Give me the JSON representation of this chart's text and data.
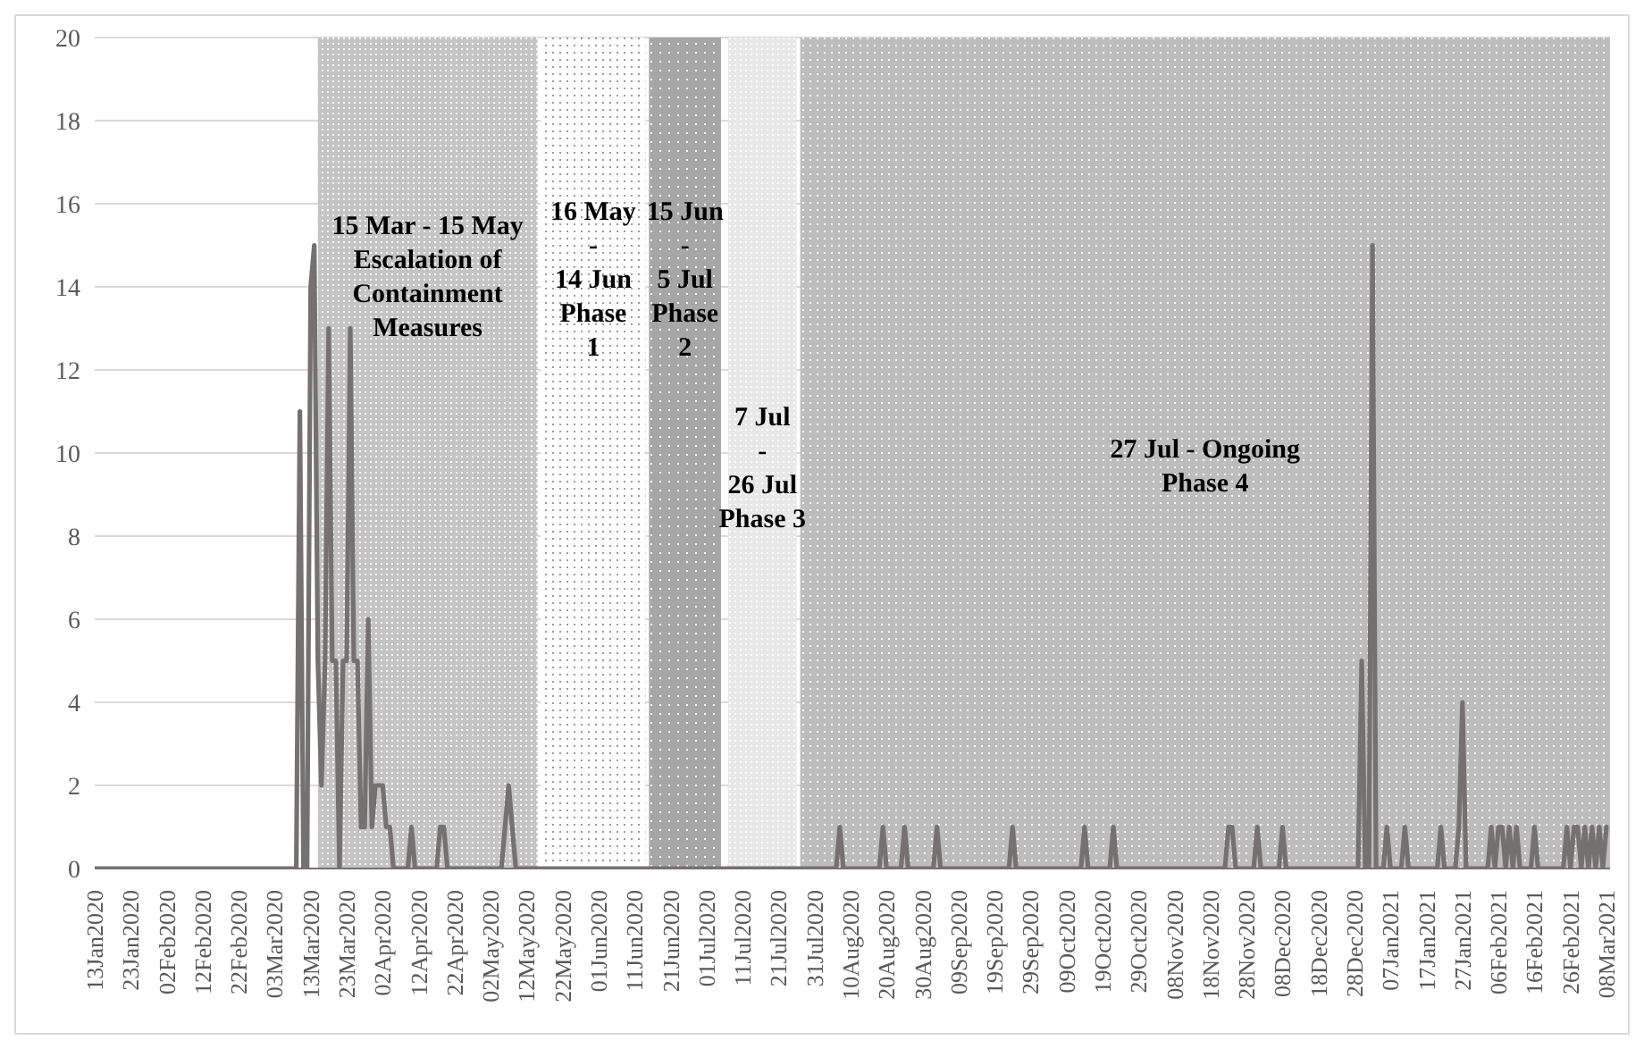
{
  "chart_data": {
    "type": "line",
    "xlim": [
      "2020-01-13",
      "2021-03-09"
    ],
    "ylim": [
      0,
      20
    ],
    "yticks": [
      0,
      2,
      4,
      6,
      8,
      10,
      12,
      14,
      16,
      18,
      20
    ],
    "grid": "y",
    "marker": "none",
    "line_style": "solid",
    "xticks": [
      {
        "value": "2020-01-13",
        "label": "13Jan2020"
      },
      {
        "value": "2020-01-23",
        "label": "23Jan2020"
      },
      {
        "value": "2020-02-02",
        "label": "02Feb2020"
      },
      {
        "value": "2020-02-12",
        "label": "12Feb2020"
      },
      {
        "value": "2020-02-22",
        "label": "22Feb2020"
      },
      {
        "value": "2020-03-03",
        "label": "03Mar2020"
      },
      {
        "value": "2020-03-13",
        "label": "13Mar2020"
      },
      {
        "value": "2020-03-23",
        "label": "23Mar2020"
      },
      {
        "value": "2020-04-02",
        "label": "02Apr2020"
      },
      {
        "value": "2020-04-12",
        "label": "12Apr2020"
      },
      {
        "value": "2020-04-22",
        "label": "22Apr2020"
      },
      {
        "value": "2020-05-02",
        "label": "02May2020"
      },
      {
        "value": "2020-05-12",
        "label": "12May2020"
      },
      {
        "value": "2020-05-22",
        "label": "22May2020"
      },
      {
        "value": "2020-06-01",
        "label": "01Jun2020"
      },
      {
        "value": "2020-06-11",
        "label": "11Jun2020"
      },
      {
        "value": "2020-06-21",
        "label": "21Jun2020"
      },
      {
        "value": "2020-07-01",
        "label": "01Jul2020"
      },
      {
        "value": "2020-07-11",
        "label": "11Jul2020"
      },
      {
        "value": "2020-07-21",
        "label": "21Jul2020"
      },
      {
        "value": "2020-07-31",
        "label": "31Jul2020"
      },
      {
        "value": "2020-08-10",
        "label": "10Aug2020"
      },
      {
        "value": "2020-08-20",
        "label": "20Aug2020"
      },
      {
        "value": "2020-08-30",
        "label": "30Aug2020"
      },
      {
        "value": "2020-09-09",
        "label": "09Sep2020"
      },
      {
        "value": "2020-09-19",
        "label": "19Sep2020"
      },
      {
        "value": "2020-09-29",
        "label": "29Sep2020"
      },
      {
        "value": "2020-10-09",
        "label": "09Oct2020"
      },
      {
        "value": "2020-10-19",
        "label": "19Oct2020"
      },
      {
        "value": "2020-10-29",
        "label": "29Oct2020"
      },
      {
        "value": "2020-11-08",
        "label": "08Nov2020"
      },
      {
        "value": "2020-11-18",
        "label": "18Nov2020"
      },
      {
        "value": "2020-11-28",
        "label": "28Nov2020"
      },
      {
        "value": "2020-12-08",
        "label": "08Dec2020"
      },
      {
        "value": "2020-12-18",
        "label": "18Dec2020"
      },
      {
        "value": "2020-12-28",
        "label": "28Dec2020"
      },
      {
        "value": "2021-01-07",
        "label": "07Jan2021"
      },
      {
        "value": "2021-01-17",
        "label": "17Jan2021"
      },
      {
        "value": "2021-01-27",
        "label": "27Jan2021"
      },
      {
        "value": "2021-02-06",
        "label": "06Feb2021"
      },
      {
        "value": "2021-02-16",
        "label": "16Feb2021"
      },
      {
        "value": "2021-02-26",
        "label": "26Feb2021"
      },
      {
        "value": "2021-03-08",
        "label": "08Mar2021"
      }
    ],
    "bands": [
      {
        "axis": "x",
        "from": "2020-03-15",
        "to": "2020-05-15",
        "label": "15 Mar - 15 May\nEscalation of\nContainment\nMeasures",
        "color": "#c4c4c4"
      },
      {
        "axis": "x",
        "from": "2020-05-16",
        "to": "2020-06-14",
        "label": "16 May\n-\n14 Jun\nPhase\n1",
        "color": "#ffffff"
      },
      {
        "axis": "x",
        "from": "2020-06-15",
        "to": "2020-07-05",
        "label": "15 Jun\n-\n5 Jul\nPhase\n2",
        "color": "#a6a6a6"
      },
      {
        "axis": "x",
        "from": "2020-07-07",
        "to": "2020-07-26",
        "label": "7 Jul\n-\n26 Jul\nPhase 3",
        "color": "#e8e8e8"
      },
      {
        "axis": "x",
        "from": "2020-07-27",
        "to": "2021-03-09",
        "label": "27 Jul - Ongoing\nPhase 4",
        "color": "#bdbdbd"
      }
    ],
    "series": [
      {
        "color": "#767171",
        "x": [
          "2020-01-13",
          "2020-03-09",
          "2020-03-10",
          "2020-03-11",
          "2020-03-12",
          "2020-03-13",
          "2020-03-14",
          "2020-03-15",
          "2020-03-16",
          "2020-03-17",
          "2020-03-18",
          "2020-03-19",
          "2020-03-20",
          "2020-03-21",
          "2020-03-22",
          "2020-03-23",
          "2020-03-24",
          "2020-03-25",
          "2020-03-26",
          "2020-03-27",
          "2020-03-28",
          "2020-03-29",
          "2020-03-30",
          "2020-03-31",
          "2020-04-01",
          "2020-04-02",
          "2020-04-03",
          "2020-04-04",
          "2020-04-05",
          "2020-04-09",
          "2020-04-10",
          "2020-04-11",
          "2020-04-17",
          "2020-04-18",
          "2020-04-19",
          "2020-04-20",
          "2020-05-05",
          "2020-05-07",
          "2020-05-09",
          "2020-08-06",
          "2020-08-07",
          "2020-08-08",
          "2020-08-18",
          "2020-08-19",
          "2020-08-20",
          "2020-08-24",
          "2020-08-25",
          "2020-08-26",
          "2020-09-02",
          "2020-09-03",
          "2020-09-04",
          "2020-09-23",
          "2020-09-24",
          "2020-09-25",
          "2020-10-13",
          "2020-10-14",
          "2020-10-15",
          "2020-10-21",
          "2020-10-22",
          "2020-10-23",
          "2020-11-22",
          "2020-11-23",
          "2020-11-24",
          "2020-11-25",
          "2020-11-30",
          "2020-12-01",
          "2020-12-02",
          "2020-12-07",
          "2020-12-08",
          "2020-12-09",
          "2020-12-29",
          "2020-12-30",
          "2020-12-31",
          "2021-01-01",
          "2021-01-02",
          "2021-01-03",
          "2021-01-05",
          "2021-01-06",
          "2021-01-07",
          "2021-01-10",
          "2021-01-11",
          "2021-01-12",
          "2021-01-20",
          "2021-01-21",
          "2021-01-22",
          "2021-01-25",
          "2021-01-26",
          "2021-01-27",
          "2021-01-28",
          "2021-02-03",
          "2021-02-04",
          "2021-02-05",
          "2021-02-06",
          "2021-02-07",
          "2021-02-08",
          "2021-02-09",
          "2021-02-10",
          "2021-02-11",
          "2021-02-12",
          "2021-02-15",
          "2021-02-16",
          "2021-02-17",
          "2021-02-24",
          "2021-02-25",
          "2021-02-26",
          "2021-02-27",
          "2021-02-28",
          "2021-03-01",
          "2021-03-02",
          "2021-03-03",
          "2021-03-04",
          "2021-03-05",
          "2021-03-06",
          "2021-03-07",
          "2021-03-08"
        ],
        "values": [
          0,
          0,
          11,
          0,
          0,
          14,
          15,
          5,
          2,
          5,
          13,
          5,
          5,
          0,
          5,
          5,
          13,
          5,
          5,
          1,
          1,
          6,
          1,
          2,
          2,
          2,
          1,
          1,
          0,
          0,
          1,
          0,
          0,
          1,
          1,
          0,
          0,
          2,
          0,
          0,
          1,
          0,
          0,
          1,
          0,
          0,
          1,
          0,
          0,
          1,
          0,
          0,
          1,
          0,
          0,
          1,
          0,
          0,
          1,
          0,
          0,
          1,
          1,
          0,
          0,
          1,
          0,
          0,
          1,
          0,
          0,
          5,
          0,
          0,
          15,
          0,
          0,
          1,
          0,
          0,
          1,
          0,
          0,
          1,
          0,
          0,
          1,
          4,
          0,
          0,
          1,
          0,
          1,
          1,
          0,
          1,
          0,
          1,
          0,
          0,
          1,
          0,
          0,
          1,
          0,
          1,
          1,
          0,
          1,
          0,
          1,
          0,
          1,
          0,
          1
        ]
      }
    ]
  }
}
